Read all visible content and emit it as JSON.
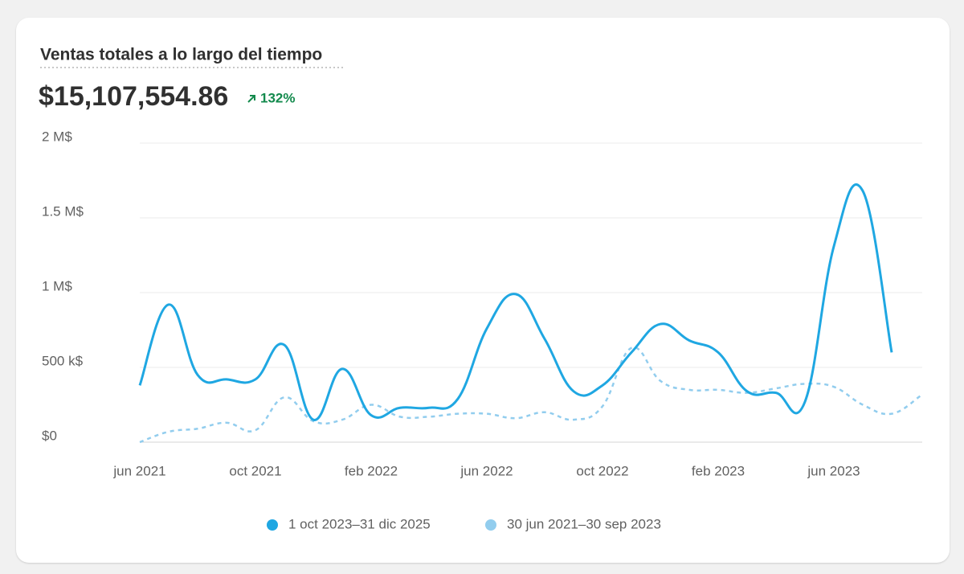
{
  "chart_data": {
    "type": "line",
    "title": "Ventas totales a lo largo del tiempo",
    "total": "$15,107,554.86",
    "change": "132%",
    "categories": [
      "jun 2021",
      null,
      null,
      null,
      "oct 2021",
      null,
      null,
      null,
      "feb 2022",
      null,
      null,
      null,
      "jun 2022",
      null,
      null,
      null,
      "oct 2022",
      null,
      null,
      null,
      "feb 2023",
      null,
      null,
      null,
      "jun 2023",
      null,
      null,
      null
    ],
    "series": [
      {
        "name": "1 oct 2023–31 dic 2025",
        "color": "#1fa7e2",
        "dashed": false,
        "values": [
          380000,
          920000,
          450000,
          420000,
          420000,
          650000,
          150000,
          490000,
          180000,
          230000,
          230000,
          290000,
          760000,
          990000,
          690000,
          340000,
          380000,
          600000,
          790000,
          680000,
          600000,
          340000,
          330000,
          270000,
          1310000,
          1680000,
          600000,
          null
        ]
      },
      {
        "name": "30 jun 2021–30 sep 2023",
        "color": "#92cdee",
        "dashed": true,
        "values": [
          0,
          70000,
          90000,
          130000,
          80000,
          300000,
          140000,
          150000,
          250000,
          170000,
          170000,
          190000,
          190000,
          160000,
          200000,
          150000,
          240000,
          630000,
          410000,
          350000,
          350000,
          330000,
          360000,
          390000,
          370000,
          250000,
          190000,
          310000
        ]
      }
    ],
    "ylim": [
      0,
      2000000
    ],
    "yticks": [
      {
        "value": 0,
        "label": "$0"
      },
      {
        "value": 500000,
        "label": "500 k$"
      },
      {
        "value": 1000000,
        "label": "1 M$"
      },
      {
        "value": 1500000,
        "label": "1.5 M$"
      },
      {
        "value": 2000000,
        "label": "2 M$"
      }
    ],
    "grid": true
  }
}
